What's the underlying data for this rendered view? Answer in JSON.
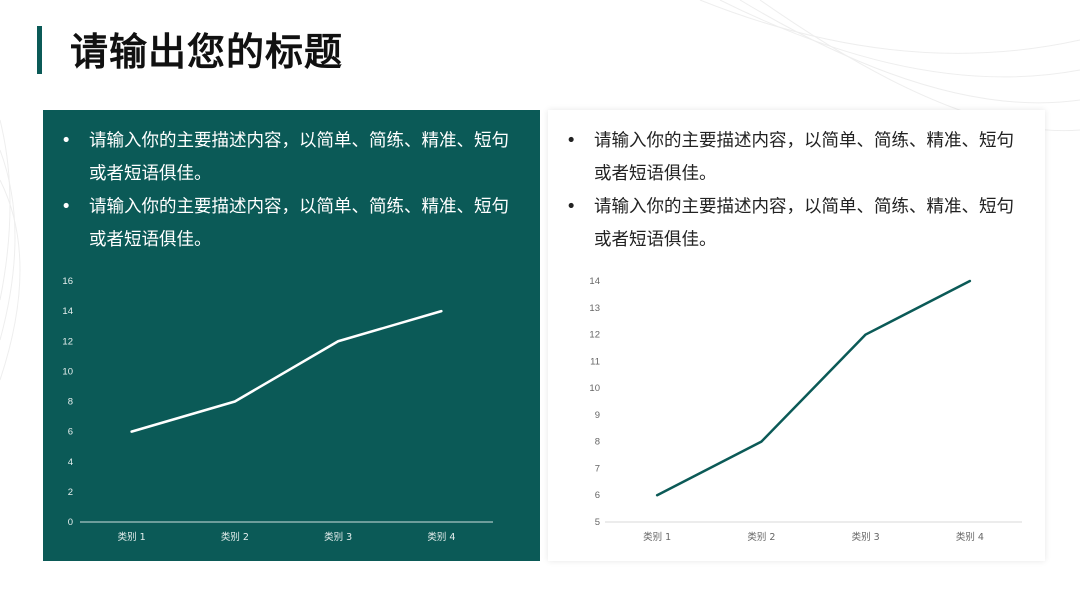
{
  "title": "请输出您的标题",
  "colors": {
    "accent": "#0b5a57",
    "panel_dark": "#0b5a57",
    "line_light": "#ffffff",
    "line_dark": "#0b5a57"
  },
  "panels": [
    {
      "bullets": [
        "请输入你的主要描述内容，以简单、简练、精准、短句或者短语俱佳。",
        "请输入你的主要描述内容，以简单、简练、精准、短句或者短语俱佳。"
      ]
    },
    {
      "bullets": [
        "请输入你的主要描述内容，以简单、简练、精准、短句或者短语俱佳。",
        "请输入你的主要描述内容，以简单、简练、精准、短句或者短语俱佳。"
      ]
    }
  ],
  "chart_data": [
    {
      "type": "line",
      "categories": [
        "类别 1",
        "类别 2",
        "类别 3",
        "类别 4"
      ],
      "values": [
        6,
        8,
        12,
        14
      ],
      "ylim": [
        0,
        16
      ],
      "yticks": [
        0,
        2,
        4,
        6,
        8,
        10,
        12,
        14,
        16
      ],
      "grid": false,
      "legend": "none"
    },
    {
      "type": "line",
      "categories": [
        "类别 1",
        "类别 2",
        "类别 3",
        "类别 4"
      ],
      "values": [
        6,
        8,
        12,
        14
      ],
      "ylim": [
        5,
        14
      ],
      "yticks": [
        5,
        6,
        7,
        8,
        9,
        10,
        11,
        12,
        13,
        14
      ],
      "grid": false,
      "legend": "none"
    }
  ]
}
